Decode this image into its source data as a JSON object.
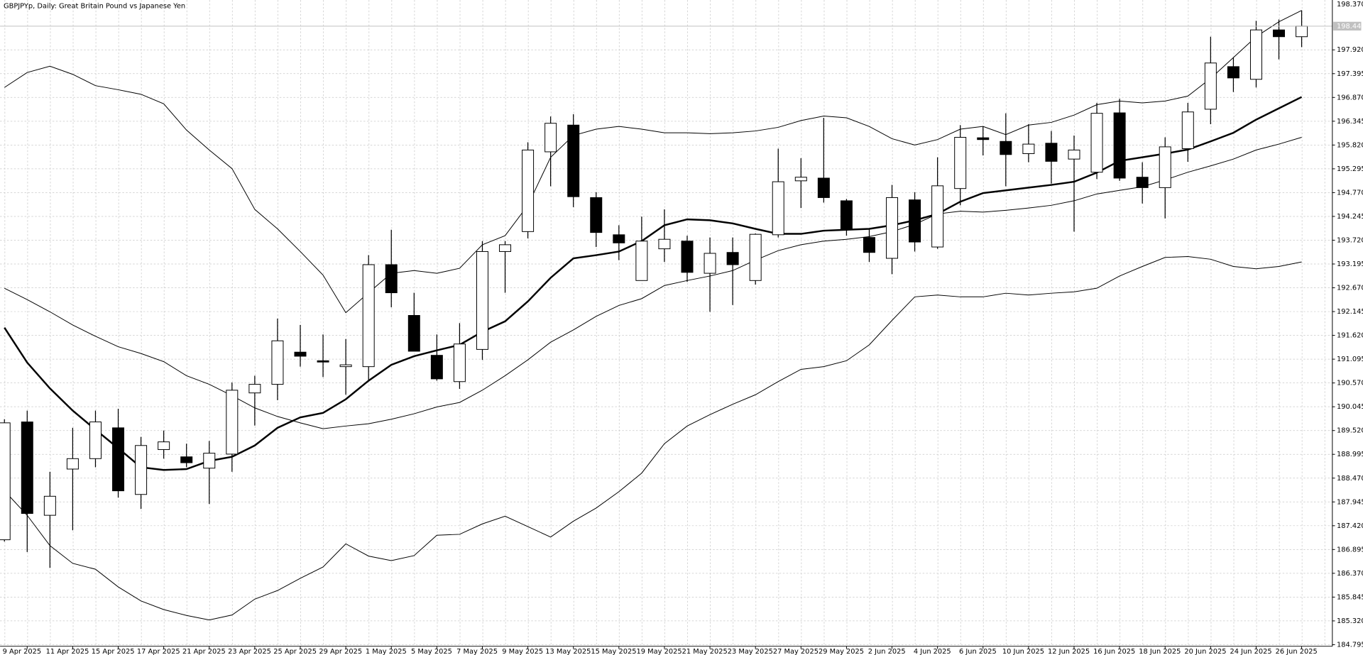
{
  "chart_data": {
    "type": "candlestick",
    "title": "GBPJPYp, Daily:  Great Britain Pound vs Japanese Yen",
    "scale_top_label": "198.370",
    "categories": [
      null,
      "9 Apr 2025",
      null,
      "11 Apr 2025",
      null,
      "15 Apr 2025",
      null,
      "17 Apr 2025",
      null,
      "21 Apr 2025",
      null,
      "23 Apr 2025",
      null,
      "25 Apr 2025",
      null,
      "29 Apr 2025",
      null,
      "1 May 2025",
      null,
      "5 May 2025",
      null,
      "7 May 2025",
      null,
      "9 May 2025",
      null,
      "13 May 2025",
      null,
      "15 May 2025",
      null,
      "19 May 2025",
      null,
      "21 May 2025",
      null,
      "23 May 2025",
      null,
      "27 May 2025",
      null,
      "29 May 2025",
      null,
      "2 Jun 2025",
      null,
      "4 Jun 2025",
      null,
      "6 Jun 2025",
      null,
      "10 Jun 2025",
      null,
      "12 Jun 2025",
      null,
      "16 Jun 2025",
      null,
      "18 Jun 2025",
      null,
      "20 Jun 2025",
      null,
      "24 Jun 2025",
      null,
      "26 Jun 2025"
    ],
    "open": [
      187.11,
      189.71,
      187.65,
      188.67,
      188.9,
      189.58,
      188.11,
      189.1,
      188.94,
      188.69,
      189.0,
      190.35,
      190.54,
      191.25,
      191.06,
      190.93,
      190.93,
      193.18,
      192.06,
      191.18,
      190.6,
      191.31,
      193.47,
      193.91,
      195.67,
      196.26,
      194.66,
      193.84,
      192.83,
      193.53,
      193.7,
      192.99,
      193.45,
      192.83,
      193.84,
      195.03,
      195.09,
      194.59,
      193.78,
      193.32,
      194.61,
      193.57,
      194.86,
      195.98,
      195.9,
      195.63,
      195.86,
      195.51,
      195.22,
      196.53,
      195.11,
      194.88,
      195.74,
      196.61,
      197.55,
      197.27,
      198.36,
      198.21
    ],
    "high": [
      189.77,
      189.96,
      188.61,
      189.58,
      189.96,
      190.0,
      189.38,
      189.52,
      189.23,
      189.29,
      190.58,
      190.73,
      191.99,
      191.85,
      191.64,
      191.54,
      193.39,
      193.95,
      192.56,
      191.64,
      191.89,
      193.7,
      193.7,
      195.88,
      196.45,
      196.5,
      194.78,
      194.05,
      194.24,
      194.4,
      193.82,
      193.78,
      193.78,
      193.87,
      195.74,
      195.53,
      196.42,
      194.63,
      193.97,
      194.94,
      194.78,
      195.55,
      196.26,
      196.23,
      196.52,
      196.28,
      196.13,
      196.03,
      196.75,
      196.84,
      195.44,
      195.99,
      196.75,
      198.21,
      197.75,
      198.56,
      198.59,
      198.79
    ],
    "low": [
      187.07,
      186.84,
      186.49,
      187.32,
      188.71,
      188.04,
      187.79,
      188.9,
      188.71,
      187.9,
      188.61,
      189.63,
      190.19,
      190.93,
      190.7,
      190.31,
      190.64,
      192.24,
      191.31,
      190.62,
      190.44,
      191.08,
      192.56,
      193.76,
      194.91,
      194.45,
      193.57,
      193.28,
      192.83,
      193.24,
      192.8,
      192.14,
      192.29,
      192.74,
      193.78,
      194.43,
      194.55,
      193.82,
      193.24,
      192.97,
      193.47,
      193.53,
      194.49,
      195.59,
      194.91,
      195.44,
      194.97,
      193.91,
      195.07,
      195.03,
      194.53,
      194.2,
      195.45,
      196.28,
      196.99,
      197.09,
      197.71,
      197.98
    ],
    "close": [
      189.69,
      187.69,
      188.07,
      188.9,
      189.71,
      188.19,
      189.19,
      189.27,
      188.81,
      189.02,
      190.41,
      190.54,
      191.5,
      191.16,
      191.04,
      190.97,
      193.18,
      192.56,
      191.27,
      190.66,
      191.43,
      193.47,
      193.62,
      195.71,
      196.3,
      194.68,
      193.89,
      193.66,
      193.7,
      193.74,
      193.01,
      193.43,
      193.18,
      193.85,
      195.01,
      195.11,
      194.66,
      193.95,
      193.45,
      194.66,
      193.68,
      194.92,
      195.99,
      195.94,
      195.61,
      195.84,
      195.46,
      195.71,
      196.52,
      195.09,
      194.88,
      195.78,
      196.55,
      197.63,
      197.3,
      198.36,
      198.21,
      198.443
    ],
    "bull_color": "#ffffff",
    "bear_color": "#000000",
    "lines": [
      {
        "color": "#000000",
        "line_width": 0.8,
        "values": [
          197.09,
          197.42,
          197.56,
          197.38,
          197.13,
          197.04,
          196.94,
          196.73,
          196.15,
          195.71,
          195.3,
          194.4,
          193.97,
          193.47,
          192.95,
          192.12,
          192.56,
          192.99,
          193.05,
          192.99,
          193.1,
          193.62,
          193.82,
          194.49,
          195.55,
          196.03,
          196.17,
          196.23,
          196.17,
          196.09,
          196.09,
          196.07,
          196.09,
          196.13,
          196.21,
          196.36,
          196.46,
          196.42,
          196.23,
          195.96,
          195.82,
          195.94,
          196.17,
          196.23,
          196.05,
          196.26,
          196.32,
          196.48,
          196.71,
          196.79,
          196.75,
          196.79,
          196.9,
          197.29,
          197.75,
          198.21,
          198.54,
          198.79
        ]
      },
      {
        "color": "#000000",
        "line_width": 0.8,
        "values": [
          192.66,
          192.41,
          192.14,
          191.85,
          191.6,
          191.37,
          191.22,
          191.04,
          190.73,
          190.54,
          190.29,
          190.02,
          189.83,
          189.69,
          189.56,
          189.62,
          189.67,
          189.77,
          189.89,
          190.04,
          190.14,
          190.41,
          190.73,
          191.08,
          191.47,
          191.74,
          192.04,
          192.28,
          192.43,
          192.72,
          192.83,
          192.93,
          193.05,
          193.28,
          193.49,
          193.62,
          193.7,
          193.74,
          193.8,
          193.91,
          194.07,
          194.3,
          194.36,
          194.34,
          194.38,
          194.43,
          194.49,
          194.59,
          194.74,
          194.82,
          194.9,
          195.05,
          195.22,
          195.36,
          195.51,
          195.71,
          195.84,
          195.99
        ]
      },
      {
        "color": "#000000",
        "line_width": 0.8,
        "values": [
          188.19,
          187.65,
          186.98,
          186.59,
          186.46,
          186.07,
          185.76,
          185.57,
          185.44,
          185.34,
          185.45,
          185.8,
          185.99,
          186.26,
          186.51,
          187.02,
          186.75,
          186.65,
          186.76,
          187.21,
          187.23,
          187.46,
          187.63,
          187.4,
          187.17,
          187.52,
          187.81,
          188.17,
          188.58,
          189.23,
          189.62,
          189.87,
          190.1,
          190.31,
          190.6,
          190.87,
          190.93,
          191.06,
          191.41,
          191.95,
          192.47,
          192.51,
          192.47,
          192.47,
          192.55,
          192.51,
          192.55,
          192.58,
          192.66,
          192.93,
          193.14,
          193.34,
          193.36,
          193.3,
          193.14,
          193.09,
          193.14,
          193.24
        ]
      },
      {
        "color": "#000000",
        "line_width": 2,
        "values": [
          191.79,
          191.02,
          190.45,
          189.96,
          189.54,
          189.13,
          188.71,
          188.65,
          188.67,
          188.85,
          188.94,
          189.19,
          189.58,
          189.81,
          189.91,
          190.21,
          190.62,
          190.97,
          191.16,
          191.29,
          191.41,
          191.7,
          191.93,
          192.37,
          192.89,
          193.32,
          193.39,
          193.47,
          193.7,
          194.05,
          194.18,
          194.16,
          194.09,
          193.97,
          193.86,
          193.86,
          193.93,
          193.95,
          193.97,
          194.05,
          194.16,
          194.3,
          194.57,
          194.76,
          194.82,
          194.88,
          194.94,
          195.01,
          195.21,
          195.47,
          195.55,
          195.63,
          195.72,
          195.9,
          196.09,
          196.38,
          196.63,
          196.88
        ]
      }
    ],
    "last_price": 198.443,
    "last_price_color": "#c0c0c0",
    "ylim": [
      184.76,
      199.02
    ],
    "yticks": [
      184.795,
      {
        "value": 185.32,
        "label": "185.320"
      },
      185.845,
      {
        "value": 186.37,
        "label": "186.370"
      },
      186.895,
      {
        "value": 187.42,
        "label": "187.420"
      },
      187.945,
      {
        "value": 188.47,
        "label": "188.470"
      },
      188.995,
      {
        "value": 189.52,
        "label": "189.520"
      },
      190.045,
      {
        "value": 190.57,
        "label": "190.570"
      },
      191.095,
      {
        "value": 191.62,
        "label": "191.620"
      },
      192.145,
      {
        "value": 192.67,
        "label": "192.670"
      },
      193.195,
      {
        "value": 193.72,
        "label": "193.720"
      },
      194.245,
      {
        "value": 194.77,
        "label": "194.770"
      },
      195.295,
      {
        "value": 195.82,
        "label": "195.820"
      },
      196.345,
      {
        "value": 196.87,
        "label": "196.870"
      },
      197.395,
      {
        "value": 197.92,
        "label": "197.920"
      }
    ],
    "grid": true
  }
}
